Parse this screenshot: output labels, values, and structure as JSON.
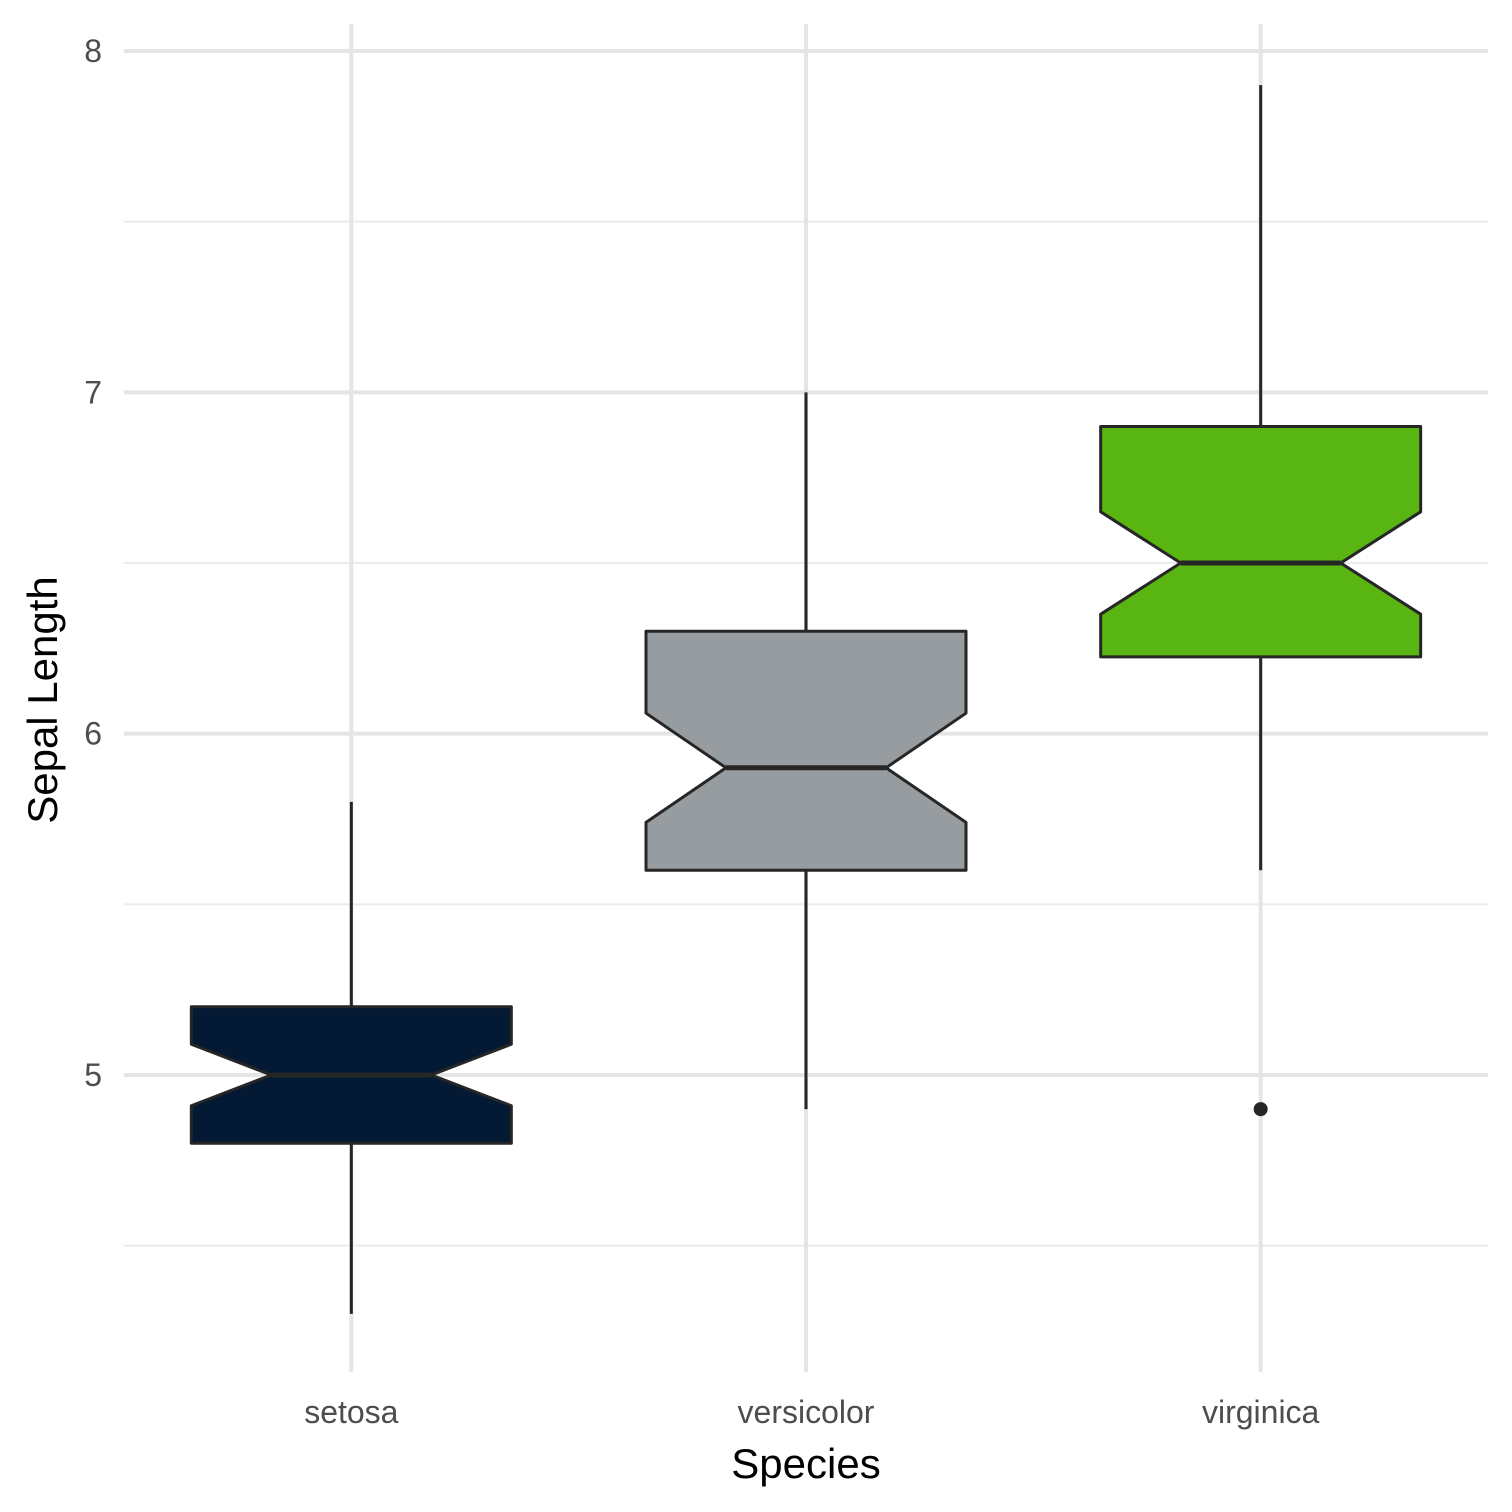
{
  "chart_data": {
    "type": "boxplot",
    "xlabel": "Species",
    "ylabel": "Sepal Length",
    "categories": [
      "setosa",
      "versicolor",
      "virginica"
    ],
    "ylim": [
      4.3,
      8.0
    ],
    "yticks": [
      5,
      6,
      7,
      8
    ],
    "notched": true,
    "grid": true,
    "legend": "none",
    "series": [
      {
        "category": "setosa",
        "min": 4.3,
        "q1": 4.8,
        "median": 5.0,
        "q3": 5.2,
        "max": 5.8,
        "notch_low": 4.91,
        "notch_high": 5.09,
        "outliers": [],
        "color": "#041934"
      },
      {
        "category": "versicolor",
        "min": 4.9,
        "q1": 5.6,
        "median": 5.9,
        "q3": 6.3,
        "max": 7.0,
        "notch_low": 5.74,
        "notch_high": 6.06,
        "outliers": [],
        "color": "#969C9F"
      },
      {
        "category": "virginica",
        "min": 5.6,
        "q1": 6.225,
        "median": 6.5,
        "q3": 6.9,
        "max": 7.9,
        "notch_low": 6.35,
        "notch_high": 6.65,
        "outliers": [
          4.9
        ],
        "color": "#59B512"
      }
    ]
  }
}
